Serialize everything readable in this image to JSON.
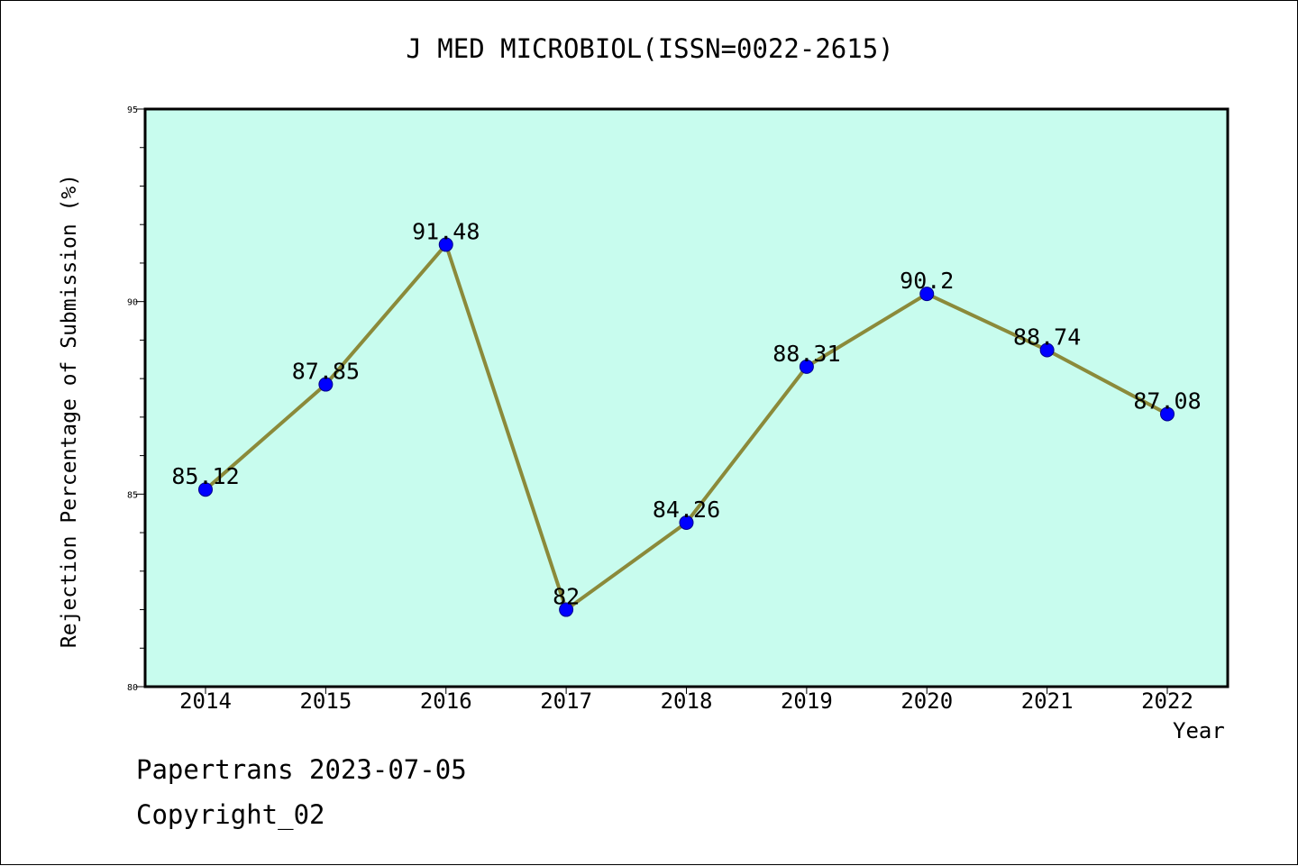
{
  "chart_data": {
    "type": "line",
    "title": "J MED MICROBIOL(ISSN=0022-2615)",
    "xlabel": "Year",
    "ylabel": "Rejection Percentage of Submission (%)",
    "x": [
      "2014",
      "2015",
      "2016",
      "2017",
      "2018",
      "2019",
      "2020",
      "2021",
      "2022"
    ],
    "series": [
      {
        "values": [
          85.12,
          87.85,
          91.48,
          82,
          84.26,
          88.31,
          90.2,
          88.74,
          87.08
        ],
        "labels": [
          "85.12",
          "87.85",
          "91.48",
          "82",
          "84.26",
          "88.31",
          "90.2",
          "88.74",
          "87.08"
        ]
      }
    ],
    "ylim": [
      80,
      95
    ],
    "yticks": [
      "80",
      "85",
      "90",
      "95"
    ],
    "grid": false,
    "colors": {
      "plot_background": "#c8fcee",
      "line": "#8b8a3a",
      "marker": "#0000ff"
    }
  },
  "footer": {
    "line1": "Papertrans 2023-07-05",
    "line2": "Copyright_02"
  }
}
